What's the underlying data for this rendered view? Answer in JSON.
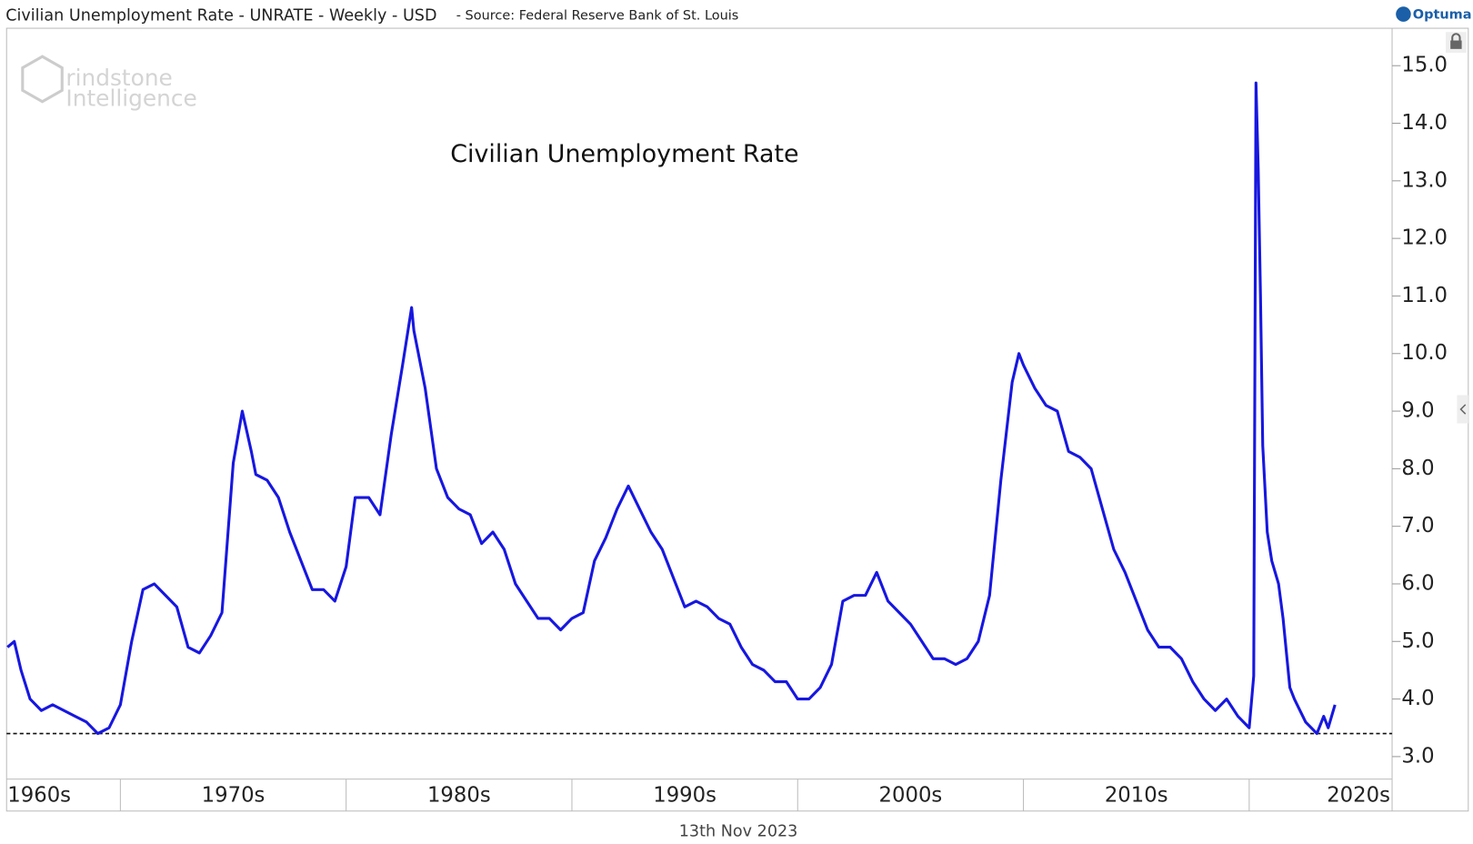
{
  "header": {
    "title": "Civilian Unemployment Rate - UNRATE - Weekly - USD",
    "source": "- Source: Federal Reserve Bank of St. Louis",
    "brand": "Optuma"
  },
  "watermark": [
    "rindstone",
    "Intelligence"
  ],
  "footer": "13th Nov 2023",
  "chart_data": {
    "type": "line",
    "title": "Civilian Unemployment Rate",
    "xlim": [
      1964.96,
      2026.33
    ],
    "xticks": [
      {
        "value": 1960,
        "label": "1960s"
      },
      {
        "value": 1970,
        "label": "1970s"
      },
      {
        "value": 1980,
        "label": "1980s"
      },
      {
        "value": 1990,
        "label": "1990s"
      },
      {
        "value": 2000,
        "label": "2000s"
      },
      {
        "value": 2010,
        "label": "2010s"
      },
      {
        "value": 2020,
        "label": "2020s"
      }
    ],
    "ylim": [
      2.61,
      15.65
    ],
    "yticks": [
      {
        "value": 3,
        "label": "3.0"
      },
      {
        "value": 4,
        "label": "4.0"
      },
      {
        "value": 5,
        "label": "5.0"
      },
      {
        "value": 6,
        "label": "6.0"
      },
      {
        "value": 7,
        "label": "7.0"
      },
      {
        "value": 8,
        "label": "8.0"
      },
      {
        "value": 9,
        "label": "9.0"
      },
      {
        "value": 10,
        "label": "10.0"
      },
      {
        "value": 11,
        "label": "11.0"
      },
      {
        "value": 12,
        "label": "12.0"
      },
      {
        "value": 13,
        "label": "13.0"
      },
      {
        "value": 14,
        "label": "14.0"
      },
      {
        "value": 15,
        "label": "15.0"
      }
    ],
    "reference_line": 3.4,
    "series": [
      {
        "name": "Civilian Unemployment Rate",
        "color": "#1717e0",
        "x": [
          1965.0,
          1965.3,
          1965.6,
          1966.0,
          1966.5,
          1967.0,
          1967.5,
          1968.0,
          1968.5,
          1969.0,
          1969.5,
          1970.0,
          1970.5,
          1971.0,
          1971.5,
          1972.0,
          1972.5,
          1973.0,
          1973.5,
          1974.0,
          1974.5,
          1975.0,
          1975.4,
          1975.8,
          1976.0,
          1976.5,
          1977.0,
          1977.5,
          1978.0,
          1978.5,
          1979.0,
          1979.5,
          1980.0,
          1980.4,
          1980.8,
          1981.0,
          1981.5,
          1982.0,
          1982.5,
          1982.9,
          1983.0,
          1983.5,
          1984.0,
          1984.5,
          1985.0,
          1985.5,
          1986.0,
          1986.5,
          1987.0,
          1987.5,
          1988.0,
          1988.5,
          1989.0,
          1989.5,
          1990.0,
          1990.5,
          1991.0,
          1991.5,
          1992.0,
          1992.5,
          1993.0,
          1993.5,
          1994.0,
          1994.5,
          1995.0,
          1995.5,
          1996.0,
          1996.5,
          1997.0,
          1997.5,
          1998.0,
          1998.5,
          1999.0,
          1999.5,
          2000.0,
          2000.5,
          2001.0,
          2001.5,
          2002.0,
          2002.5,
          2003.0,
          2003.5,
          2004.0,
          2004.5,
          2005.0,
          2005.5,
          2006.0,
          2006.5,
          2007.0,
          2007.5,
          2008.0,
          2008.5,
          2009.0,
          2009.5,
          2009.8,
          2010.0,
          2010.5,
          2011.0,
          2011.5,
          2012.0,
          2012.5,
          2013.0,
          2013.5,
          2014.0,
          2014.5,
          2015.0,
          2015.5,
          2016.0,
          2016.5,
          2017.0,
          2017.5,
          2018.0,
          2018.5,
          2019.0,
          2019.5,
          2020.0,
          2020.2,
          2020.3,
          2020.4,
          2020.5,
          2020.6,
          2020.8,
          2021.0,
          2021.3,
          2021.5,
          2021.8,
          2022.0,
          2022.5,
          2023.0,
          2023.3,
          2023.5,
          2023.8
        ],
        "values": [
          4.9,
          5.0,
          4.5,
          4.0,
          3.8,
          3.9,
          3.8,
          3.7,
          3.6,
          3.4,
          3.5,
          3.9,
          5.0,
          5.9,
          6.0,
          5.8,
          5.6,
          4.9,
          4.8,
          5.1,
          5.5,
          8.1,
          9.0,
          8.3,
          7.9,
          7.8,
          7.5,
          6.9,
          6.4,
          5.9,
          5.9,
          5.7,
          6.3,
          7.5,
          7.5,
          7.5,
          7.2,
          8.6,
          9.8,
          10.8,
          10.4,
          9.4,
          8.0,
          7.5,
          7.3,
          7.2,
          6.7,
          6.9,
          6.6,
          6.0,
          5.7,
          5.4,
          5.4,
          5.2,
          5.4,
          5.5,
          6.4,
          6.8,
          7.3,
          7.7,
          7.3,
          6.9,
          6.6,
          6.1,
          5.6,
          5.7,
          5.6,
          5.4,
          5.3,
          4.9,
          4.6,
          4.5,
          4.3,
          4.3,
          4.0,
          4.0,
          4.2,
          4.6,
          5.7,
          5.8,
          5.8,
          6.2,
          5.7,
          5.5,
          5.3,
          5.0,
          4.7,
          4.7,
          4.6,
          4.7,
          5.0,
          5.8,
          7.8,
          9.5,
          10.0,
          9.8,
          9.4,
          9.1,
          9.0,
          8.3,
          8.2,
          8.0,
          7.3,
          6.6,
          6.2,
          5.7,
          5.2,
          4.9,
          4.9,
          4.7,
          4.3,
          4.0,
          3.8,
          4.0,
          3.7,
          3.5,
          4.4,
          14.7,
          13.2,
          11.0,
          8.4,
          6.9,
          6.4,
          6.0,
          5.4,
          4.2,
          4.0,
          3.6,
          3.4,
          3.7,
          3.5,
          3.9
        ]
      }
    ]
  }
}
